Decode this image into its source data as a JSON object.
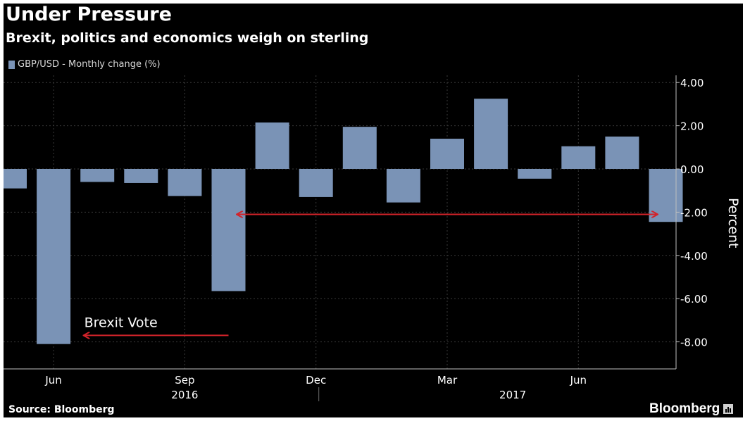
{
  "header": {
    "title": "Under Pressure",
    "subtitle": "Brexit, politics and economics weigh on sterling"
  },
  "legend": {
    "label": "GBP/USD - Monthly change (%)"
  },
  "footer": {
    "source": "Source: Bloomberg",
    "brand": "Bloomberg"
  },
  "colors": {
    "bar": "#7a93b6",
    "arrow": "#d2232a",
    "background": "#000000",
    "text": "#ffffff"
  },
  "icons": {
    "brand": "bloomberg-terminal-icon"
  },
  "chart_data": {
    "type": "bar",
    "categories": [
      "May 2016",
      "Jun 2016",
      "Jul 2016",
      "Aug 2016",
      "Sep 2016",
      "Oct 2016",
      "Nov 2016",
      "Dec 2016",
      "Jan 2017",
      "Feb 2017",
      "Mar 2017",
      "Apr 2017",
      "May 2017",
      "Jun 2017",
      "Jul 2017",
      "Aug 2017"
    ],
    "series": [
      {
        "name": "GBP/USD - Monthly change (%)",
        "values": [
          -0.9,
          -8.1,
          -0.6,
          -0.65,
          -1.25,
          -5.65,
          2.15,
          -1.3,
          1.95,
          -1.55,
          1.4,
          3.25,
          -0.45,
          1.05,
          1.5,
          -2.45
        ]
      }
    ],
    "ylabel": "Percent",
    "ylim": [
      -9.2,
      4.05
    ],
    "yticks": [
      4,
      2,
      0,
      -2,
      -4,
      -6,
      -8
    ],
    "ytick_labels": [
      "4.00",
      "2.00",
      "0.00",
      "-2.00",
      "-4.00",
      "-6.00",
      "-8.00"
    ],
    "xtick_labels": [
      {
        "index": 1,
        "label": "Jun"
      },
      {
        "index": 4,
        "label": "Sep"
      },
      {
        "index": 7,
        "label": "Dec"
      },
      {
        "index": 10,
        "label": "Mar"
      },
      {
        "index": 13,
        "label": "Jun"
      }
    ],
    "year_labels": [
      {
        "from": 1,
        "to": 7,
        "label": "2016"
      },
      {
        "from": 8,
        "to": 15,
        "label": "2017"
      }
    ],
    "annotations": [
      {
        "text": "Brexit Vote",
        "arrow_from_index": 5,
        "arrow_to_index": 1.7,
        "y": -7.7,
        "direction": "left"
      },
      {
        "text": "",
        "arrow_from_index": 5.2,
        "arrow_to_index": 14.8,
        "y": -2.1,
        "direction": "both"
      }
    ],
    "grid": true,
    "legend_position": "top-left"
  }
}
